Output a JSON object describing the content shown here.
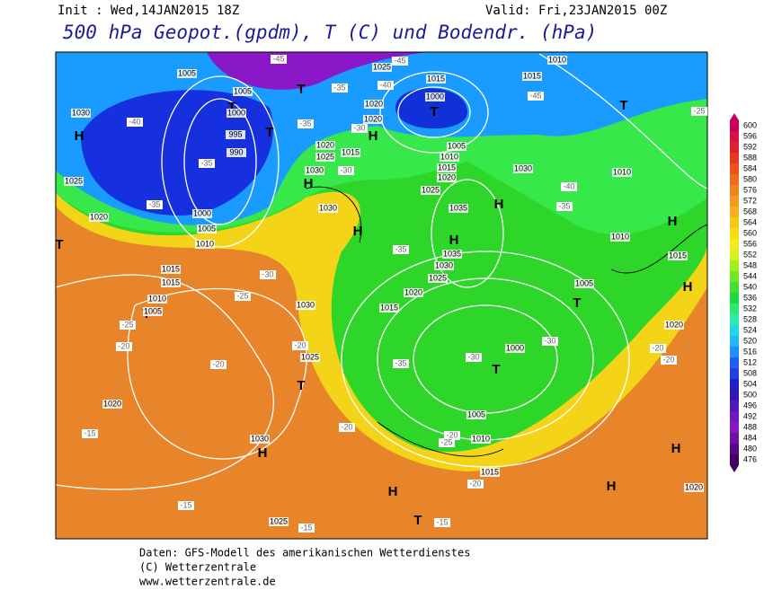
{
  "header": {
    "init": "Init : Wed,14JAN2015 18Z",
    "valid": "Valid: Fri,23JAN2015 00Z",
    "title": "500 hPa Geopot.(gpdm), T (C) und Bodendr. (hPa)"
  },
  "systems": [
    "H",
    "H",
    "H",
    "H",
    "H",
    "H",
    "H",
    "H",
    "H",
    "H",
    "H",
    "H",
    "T",
    "T",
    "T",
    "T",
    "T",
    "T",
    "T",
    "T",
    "T",
    "T",
    "T"
  ],
  "isobars": [
    "1030",
    "1025",
    "1020",
    "1005",
    "1005",
    "1000",
    "995",
    "990",
    "1000",
    "1005",
    "1010",
    "1015",
    "1015",
    "1010",
    "1005",
    "1025",
    "1015",
    "1000",
    "1020",
    "1020",
    "1015",
    "1020",
    "1025",
    "1030",
    "1030",
    "1005",
    "1010",
    "1015",
    "1020",
    "1030",
    "1025",
    "1035",
    "1035",
    "1030",
    "1025",
    "1020",
    "1015",
    "1030",
    "1025",
    "1005",
    "1000",
    "1005",
    "1010",
    "1015",
    "1020",
    "1030",
    "1025",
    "1010",
    "1015",
    "1010",
    "1010",
    "1015",
    "1020",
    "1020"
  ],
  "temperatures": [
    "-45",
    "-45",
    "-40",
    "-35",
    "-35",
    "-30",
    "-30",
    "-40",
    "-35",
    "-35",
    "-45",
    "-40",
    "-35",
    "-35",
    "-30",
    "-25",
    "-25",
    "-20",
    "-20",
    "-20",
    "-35",
    "-30",
    "-30",
    "-20",
    "-20",
    "-25",
    "-20",
    "-15",
    "-15",
    "-15",
    "-15",
    "-20",
    "-20",
    "-25"
  ],
  "legend": {
    "values": [
      "600",
      "596",
      "592",
      "588",
      "584",
      "580",
      "576",
      "572",
      "568",
      "564",
      "560",
      "556",
      "552",
      "548",
      "544",
      "540",
      "536",
      "532",
      "528",
      "524",
      "520",
      "516",
      "512",
      "508",
      "504",
      "500",
      "496",
      "492",
      "488",
      "484",
      "480",
      "476"
    ]
  },
  "footer": {
    "source": "Daten: GFS-Modell des amerikanischen Wetterdienstes",
    "copyright": "(C) Wetterzentrale",
    "url": "www.wetterzentrale.de"
  }
}
